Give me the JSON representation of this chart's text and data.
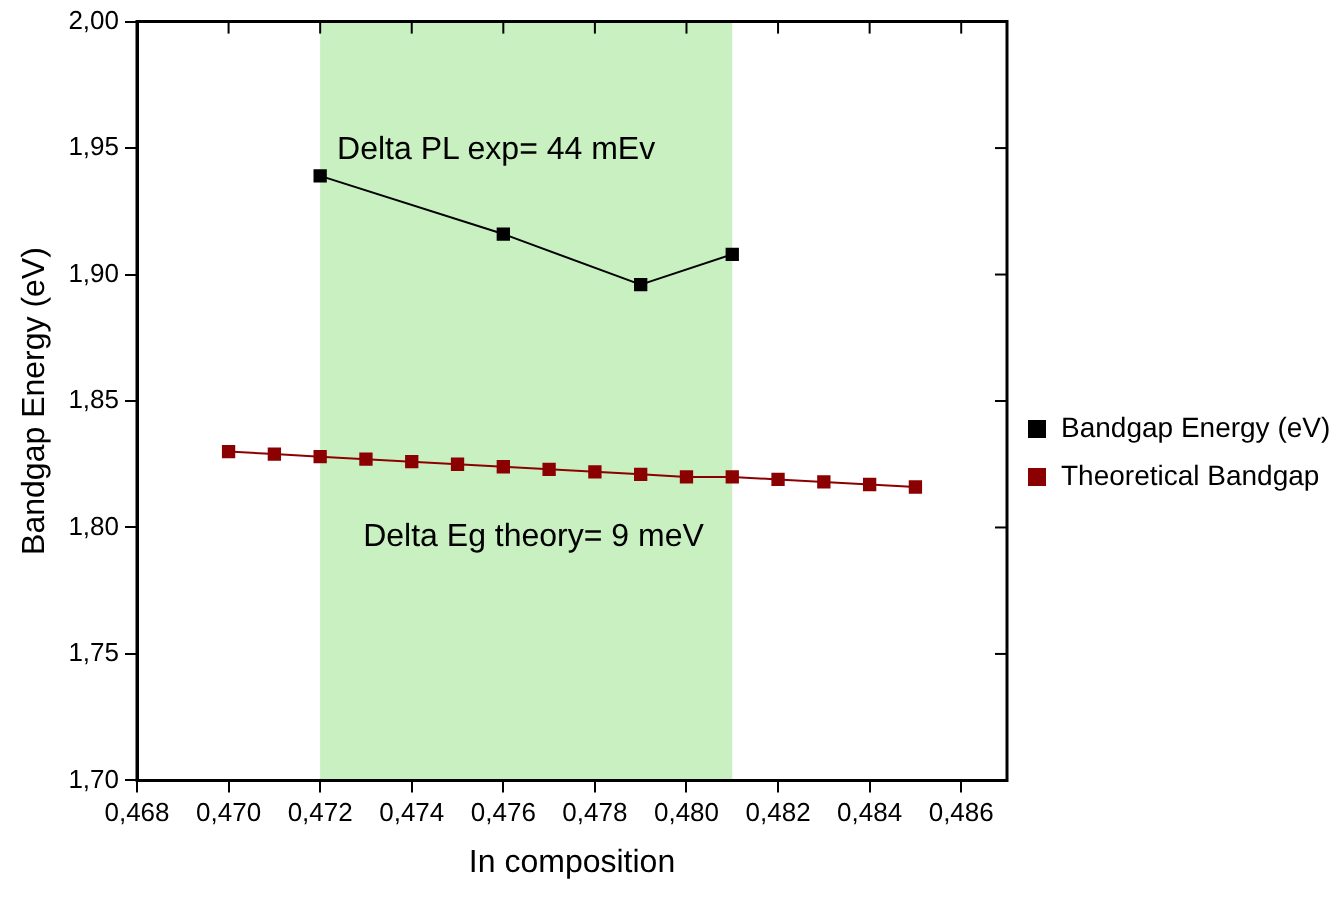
{
  "chart_data": {
    "type": "line",
    "xlabel": "In composition",
    "ylabel": "Bandgap Energy (eV)",
    "xlim": [
      0.468,
      0.487
    ],
    "ylim": [
      1.7,
      2.0
    ],
    "xticks": [
      {
        "value": 0.468,
        "label": "0,468"
      },
      {
        "value": 0.47,
        "label": "0,470"
      },
      {
        "value": 0.472,
        "label": "0,472"
      },
      {
        "value": 0.474,
        "label": "0,474"
      },
      {
        "value": 0.476,
        "label": "0,476"
      },
      {
        "value": 0.478,
        "label": "0,478"
      },
      {
        "value": 0.48,
        "label": "0,480"
      },
      {
        "value": 0.482,
        "label": "0,482"
      },
      {
        "value": 0.484,
        "label": "0,484"
      },
      {
        "value": 0.486,
        "label": "0,486"
      }
    ],
    "yticks": [
      {
        "value": 1.7,
        "label": "1,70"
      },
      {
        "value": 1.75,
        "label": "1,75"
      },
      {
        "value": 1.8,
        "label": "1,80"
      },
      {
        "value": 1.85,
        "label": "1,85"
      },
      {
        "value": 1.9,
        "label": "1,90"
      },
      {
        "value": 1.95,
        "label": "1,95"
      },
      {
        "value": 2.0,
        "label": "2,00"
      }
    ],
    "series": [
      {
        "name": "Bandgap Energy (eV)",
        "color": "#000000",
        "x": [
          0.472,
          0.476,
          0.479,
          0.481
        ],
        "values": [
          1.939,
          1.916,
          1.896,
          1.908
        ]
      },
      {
        "name": "Theoretical Bandgap",
        "color": "#8b0000",
        "x": [
          0.47,
          0.471,
          0.472,
          0.473,
          0.474,
          0.475,
          0.476,
          0.477,
          0.478,
          0.479,
          0.48,
          0.481,
          0.482,
          0.483,
          0.484,
          0.485
        ],
        "values": [
          1.83,
          1.829,
          1.828,
          1.827,
          1.826,
          1.825,
          1.824,
          1.823,
          1.822,
          1.821,
          1.82,
          1.82,
          1.819,
          1.818,
          1.817,
          1.816
        ]
      }
    ],
    "bands": [
      {
        "axis": "x",
        "from": 0.472,
        "to": 0.481,
        "color": "#c8f0c0"
      }
    ],
    "annotations": [
      "Delta PL exp= 44 mEv",
      "Delta Eg theory= 9 meV"
    ],
    "marker": "square",
    "grid": false,
    "legend": "right"
  }
}
